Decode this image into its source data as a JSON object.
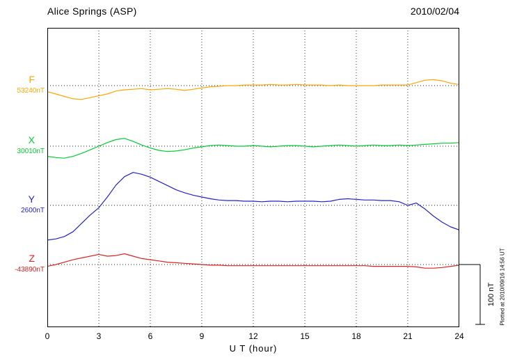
{
  "header": {
    "title": "Alice Springs (ASP)",
    "date": "2010/02/04"
  },
  "annotations": {
    "plotted_at": "Plotted at 2010/09/16 14:56 UT"
  },
  "chart_data": {
    "type": "line",
    "title": "Alice Springs (ASP) magnetogram 2010/02/04",
    "xlabel": "U T (hour)",
    "xlim": [
      0,
      24
    ],
    "x_ticks": [
      0,
      3,
      6,
      9,
      12,
      15,
      18,
      21,
      24
    ],
    "grid": "dotted vertical gridlines at 3-hour intervals; dotted horizontal baseline per trace",
    "scale_bar": {
      "label": "100 nT",
      "nT": 100
    },
    "x": [
      0,
      0.5,
      1,
      1.5,
      2,
      2.5,
      3,
      3.5,
      4,
      4.5,
      5,
      5.5,
      6,
      6.5,
      7,
      7.5,
      8,
      8.5,
      9,
      9.5,
      10,
      10.5,
      11,
      11.5,
      12,
      12.5,
      13,
      13.5,
      14,
      14.5,
      15,
      15.5,
      16,
      16.5,
      17,
      17.5,
      18,
      18.5,
      19,
      19.5,
      20,
      20.5,
      21,
      21.5,
      22,
      22.5,
      23,
      23.5,
      24
    ],
    "series": [
      {
        "name": "F",
        "base_label": "53240nT",
        "base_value": 53240,
        "color": "#FFA500",
        "offsets_nT": [
          -10,
          -14,
          -18,
          -22,
          -23,
          -20,
          -17,
          -14,
          -9,
          -7,
          -6,
          -5,
          -7,
          -6,
          -5,
          -6,
          -8,
          -6,
          -4,
          -2,
          -1,
          0,
          0,
          1,
          1,
          1,
          2,
          1,
          1,
          2,
          1,
          1,
          1,
          0,
          1,
          0,
          0,
          0,
          0,
          1,
          1,
          1,
          1,
          5,
          9,
          10,
          8,
          4,
          2
        ]
      },
      {
        "name": "X",
        "base_label": "30010nT",
        "base_value": 30010,
        "color": "#00CC33",
        "offsets_nT": [
          -17,
          -19,
          -20,
          -17,
          -12,
          -6,
          0,
          6,
          11,
          13,
          8,
          2,
          -3,
          -7,
          -9,
          -8,
          -6,
          -3,
          -1,
          1,
          2,
          1,
          0,
          0,
          1,
          0,
          -1,
          0,
          1,
          1,
          0,
          -1,
          0,
          1,
          2,
          1,
          0,
          1,
          2,
          1,
          1,
          2,
          1,
          2,
          3,
          4,
          5,
          5,
          6
        ]
      },
      {
        "name": "Y",
        "base_label": "2600nT",
        "base_value": 2600,
        "color": "#2222CC",
        "offsets_nT": [
          -58,
          -56,
          -52,
          -44,
          -30,
          -16,
          -4,
          14,
          34,
          48,
          55,
          52,
          47,
          40,
          33,
          26,
          21,
          17,
          14,
          11,
          9,
          8,
          8,
          7,
          7,
          6,
          7,
          7,
          6,
          7,
          7,
          7,
          6,
          7,
          10,
          11,
          10,
          9,
          9,
          8,
          8,
          6,
          0,
          4,
          -6,
          -18,
          -28,
          -36,
          -41
        ]
      },
      {
        "name": "Z",
        "base_label": "-43890nT",
        "base_value": -43890,
        "color": "#DD2222",
        "offsets_nT": [
          -3,
          0,
          4,
          8,
          11,
          14,
          17,
          14,
          15,
          18,
          14,
          10,
          8,
          6,
          4,
          3,
          2,
          1,
          0,
          -1,
          -1,
          -2,
          -2,
          -2,
          -2,
          -2,
          -2,
          -2,
          -2,
          -2,
          -2,
          -2,
          -2,
          -2,
          -2,
          -2,
          -2,
          -2,
          -3,
          -3,
          -3,
          -3,
          -3,
          -4,
          -6,
          -6,
          -5,
          -3,
          -1
        ]
      }
    ]
  }
}
